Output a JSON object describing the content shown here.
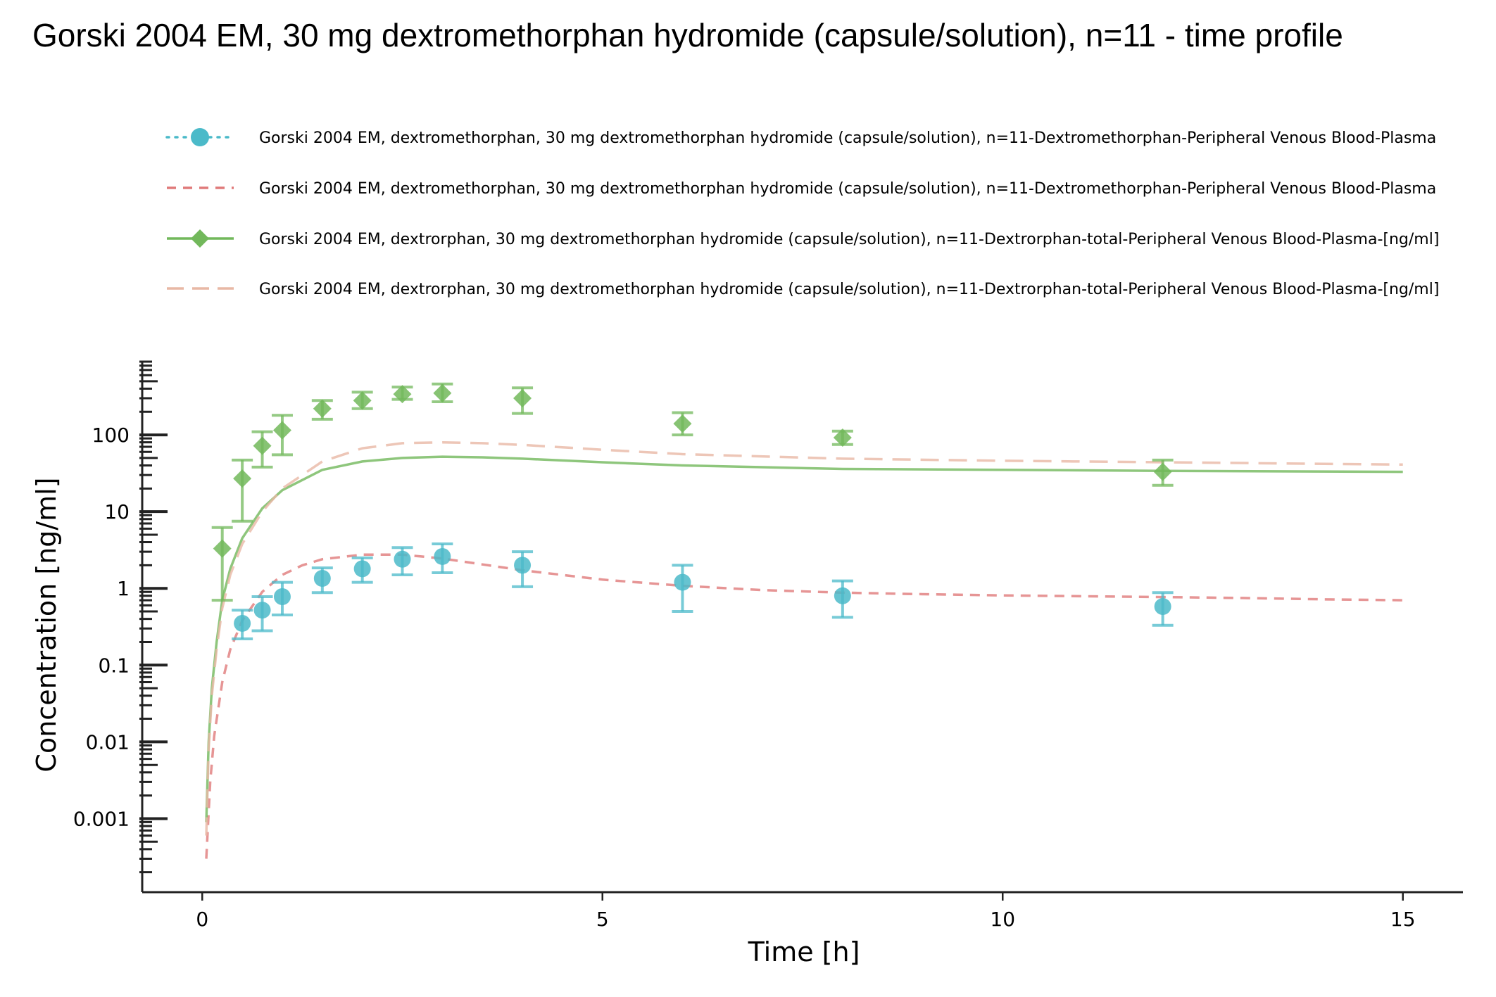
{
  "chart_data": {
    "type": "line",
    "title": "Gorski 2004 EM, 30 mg dextromethorphan hydromide (capsule/solution), n=11 - time profile",
    "xlabel": "Time [h]",
    "ylabel": "Concentration [ng/ml]",
    "xlim": [
      -0.75,
      15.75
    ],
    "ylim": [
      0.00011,
      900
    ],
    "yscale": "log",
    "x_ticks": [
      0,
      5,
      10,
      15
    ],
    "x_tick_labels": [
      "0",
      "5",
      "10",
      "15"
    ],
    "y_ticks": [
      0.001,
      0.01,
      0.1,
      1,
      10,
      100
    ],
    "y_tick_labels": [
      "0.001",
      "0.01",
      "0.1",
      "1",
      "10",
      "100"
    ],
    "grid": false,
    "legend_position": "top",
    "series": [
      {
        "name": "Gorski 2004 EM, dextromethorphan, 30 mg dextromethorphan hydromide (capsule/solution), n=11-Dextromethorphan-Peripheral Venous Blood-Plasma",
        "kind": "observed",
        "color": "#4bbac9",
        "marker": "circle",
        "line_style": "dotted",
        "x": [
          0.5,
          0.75,
          1,
          1.5,
          2,
          2.5,
          3,
          4,
          6,
          8,
          12
        ],
        "y": [
          0.35,
          0.52,
          0.78,
          1.35,
          1.8,
          2.4,
          2.6,
          2.0,
          1.2,
          0.8,
          0.58
        ],
        "y_lower": [
          0.22,
          0.28,
          0.45,
          0.88,
          1.2,
          1.5,
          1.6,
          1.05,
          0.5,
          0.42,
          0.33
        ],
        "y_upper": [
          0.52,
          0.78,
          1.2,
          1.85,
          2.5,
          3.4,
          3.8,
          3.0,
          2.0,
          1.25,
          0.88
        ]
      },
      {
        "name": "Gorski 2004 EM, dextromethorphan, 30 mg dextromethorphan hydromide (capsule/solution), n=11-Dextromethorphan-Peripheral Venous Blood-Plasma",
        "kind": "simulated",
        "color": "#e07b7b",
        "line_style": "dashed",
        "x": [
          0.05,
          0.1,
          0.15,
          0.25,
          0.35,
          0.5,
          0.75,
          1,
          1.25,
          1.5,
          2,
          2.5,
          3,
          3.5,
          4,
          5,
          6,
          7,
          8,
          9,
          10,
          11,
          12,
          13,
          14,
          15
        ],
        "y": [
          0.0003,
          0.003,
          0.012,
          0.06,
          0.16,
          0.38,
          0.9,
          1.5,
          2.0,
          2.4,
          2.75,
          2.75,
          2.45,
          2.05,
          1.72,
          1.3,
          1.08,
          0.95,
          0.88,
          0.84,
          0.81,
          0.79,
          0.77,
          0.75,
          0.72,
          0.7
        ]
      },
      {
        "name": "Gorski 2004 EM, dextrorphan, 30 mg dextromethorphan hydromide (capsule/solution), n=11-Dextrorphan-total-Peripheral Venous Blood-Plasma-[ng/ml]",
        "kind": "observed",
        "color": "#72b85b",
        "marker": "diamond",
        "line_style": "solid",
        "x": [
          0.25,
          0.5,
          0.75,
          1,
          1.5,
          2,
          2.5,
          3,
          4,
          6,
          8,
          12
        ],
        "y": [
          3.3,
          27,
          72,
          115,
          220,
          280,
          340,
          350,
          300,
          140,
          92,
          33
        ],
        "y_lower": [
          0.7,
          7.5,
          38,
          55,
          160,
          220,
          290,
          270,
          190,
          100,
          75,
          22
        ],
        "y_upper": [
          6.2,
          47,
          110,
          180,
          280,
          360,
          420,
          460,
          410,
          195,
          112,
          47
        ]
      },
      {
        "name": "Gorski 2004 EM, dextrorphan, 30 mg dextromethorphan hydromide (capsule/solution), n=11-Dextrorphan-total-Peripheral Venous Blood-Plasma-[ng/ml]",
        "kind": "simulated",
        "color": "#72b85b",
        "line_style": "solid",
        "x": [
          0.05,
          0.08,
          0.12,
          0.18,
          0.25,
          0.35,
          0.5,
          0.75,
          1,
          1.5,
          2,
          2.5,
          3,
          3.5,
          4,
          5,
          6,
          8,
          10,
          12,
          15
        ],
        "y": [
          0.0009,
          0.01,
          0.05,
          0.2,
          0.7,
          1.8,
          4.5,
          11,
          19,
          35,
          45,
          50,
          52,
          51,
          49,
          44,
          40,
          36,
          35,
          34,
          33
        ]
      },
      {
        "name": "Gorski 2004 EM, dextrorphan, 30 mg dextromethorphan hydromide (capsule/solution), n=11-Dextrorphan-total-Peripheral Venous Blood-Plasma-[ng/ml]",
        "kind": "simulated",
        "color": "#e8b8a5",
        "line_style": "long-dashed",
        "x": [
          0.05,
          0.08,
          0.12,
          0.18,
          0.25,
          0.35,
          0.5,
          0.75,
          1,
          1.5,
          2,
          2.5,
          3,
          3.5,
          4,
          5,
          6,
          8,
          10,
          12,
          15
        ],
        "y": [
          0.0006,
          0.008,
          0.04,
          0.16,
          0.55,
          1.5,
          3.8,
          10,
          20,
          45,
          67,
          78,
          80,
          78,
          74,
          64,
          56,
          49,
          46,
          44,
          41
        ]
      }
    ]
  }
}
